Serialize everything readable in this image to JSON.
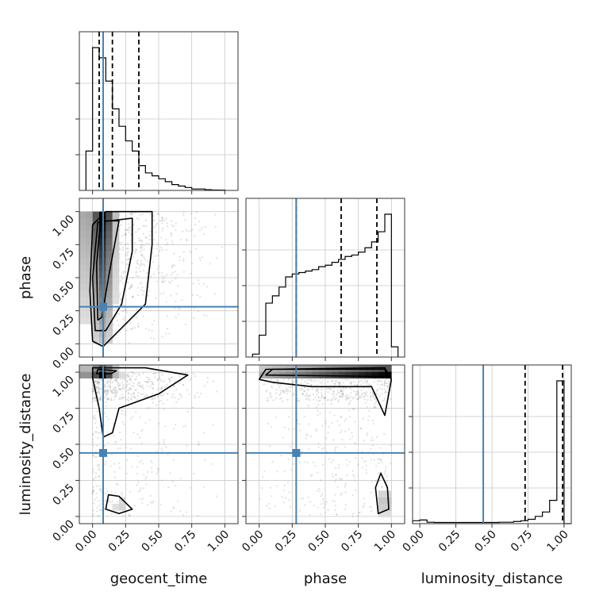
{
  "chart_data": {
    "type": "corner",
    "parameters": [
      "geocent_time",
      "phase",
      "luminosity_distance"
    ],
    "axis_labels": {
      "geocent_time": "geocent_time",
      "phase": "phase",
      "luminosity_distance": "luminosity_distance"
    },
    "ticks": [
      0.0,
      0.25,
      0.5,
      0.75,
      1.0
    ],
    "tick_labels": [
      "0.00",
      "0.25",
      "0.50",
      "0.75",
      "1.00"
    ],
    "ranges": {
      "geocent_time": [
        -0.1,
        1.1
      ],
      "phase": [
        -0.1,
        1.1
      ],
      "luminosity_distance": [
        -0.05,
        1.05
      ]
    },
    "truths": {
      "geocent_time": 0.08,
      "phase": 0.28,
      "luminosity_distance": 0.44
    },
    "truth_color": "#4682b4",
    "quantiles": {
      "geocent_time": [
        0.05,
        0.15,
        0.35
      ],
      "phase": [
        0.28,
        0.62,
        0.89
      ],
      "luminosity_distance": [
        0.73,
        0.99
      ]
    },
    "histograms": {
      "geocent_time": {
        "bin_edges": [
          -0.05,
          0.0,
          0.05,
          0.1,
          0.15,
          0.2,
          0.25,
          0.3,
          0.35,
          0.4,
          0.45,
          0.5,
          0.55,
          0.6,
          0.65,
          0.7,
          0.75,
          0.8,
          0.85,
          0.9,
          0.95,
          1.0
        ],
        "counts": [
          0.27,
          0.98,
          0.91,
          0.75,
          0.56,
          0.44,
          0.34,
          0.27,
          0.17,
          0.12,
          0.1,
          0.08,
          0.06,
          0.04,
          0.03,
          0.02,
          0.01,
          0.01,
          0.005,
          0.003,
          0.002
        ]
      },
      "phase": {
        "bin_edges": [
          -0.05,
          0.0,
          0.05,
          0.1,
          0.15,
          0.2,
          0.25,
          0.3,
          0.35,
          0.4,
          0.45,
          0.5,
          0.55,
          0.6,
          0.65,
          0.7,
          0.75,
          0.8,
          0.85,
          0.9,
          0.95,
          1.0,
          1.05
        ],
        "counts": [
          0.02,
          0.15,
          0.37,
          0.42,
          0.48,
          0.55,
          0.57,
          0.58,
          0.59,
          0.6,
          0.62,
          0.63,
          0.65,
          0.67,
          0.69,
          0.7,
          0.72,
          0.75,
          0.79,
          0.86,
          0.98,
          0.07
        ]
      },
      "luminosity_distance": {
        "bin_edges": [
          -0.05,
          0.0,
          0.05,
          0.1,
          0.15,
          0.2,
          0.25,
          0.3,
          0.35,
          0.4,
          0.45,
          0.5,
          0.55,
          0.6,
          0.65,
          0.7,
          0.75,
          0.8,
          0.85,
          0.9,
          0.95,
          1.0,
          1.05
        ],
        "counts": [
          0.02,
          0.025,
          0.01,
          0.008,
          0.008,
          0.008,
          0.008,
          0.008,
          0.008,
          0.008,
          0.008,
          0.008,
          0.01,
          0.01,
          0.015,
          0.02,
          0.03,
          0.05,
          0.08,
          0.16,
          0.98,
          0.0
        ]
      }
    },
    "contour_levels": 3,
    "grid": true
  }
}
